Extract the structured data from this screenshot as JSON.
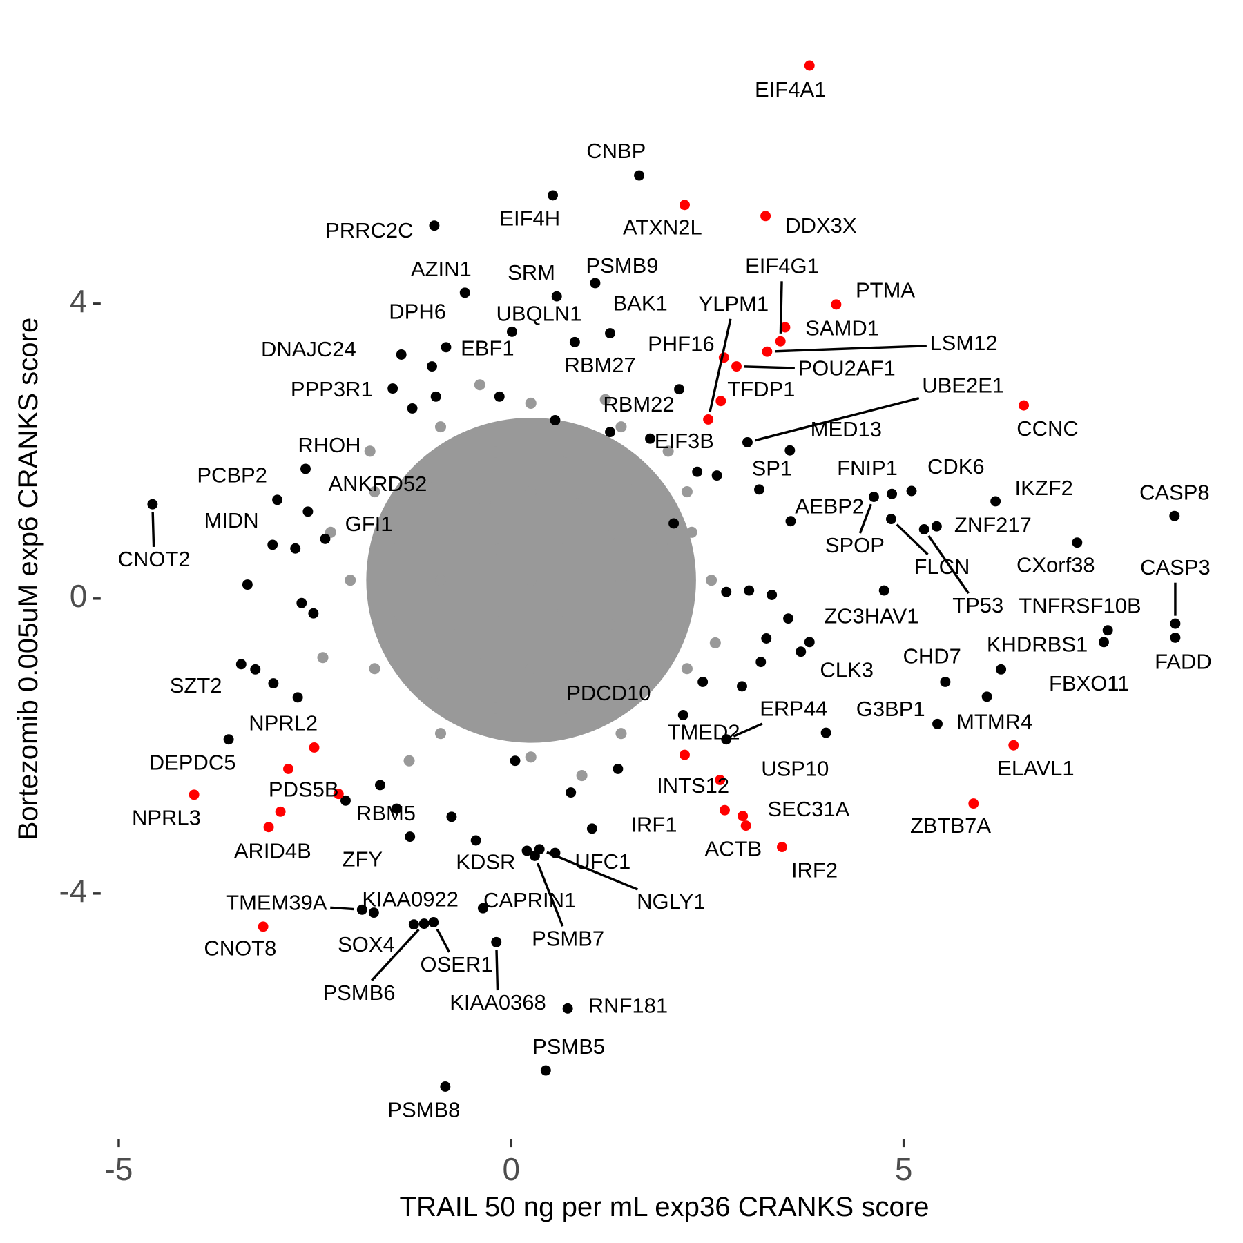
{
  "chart_data": {
    "type": "scatter",
    "xlabel": "TRAIL 50 ng per mL exp36 CRANKS score",
    "ylabel": "Bortezomib 0.005uM exp6 CRANKS score",
    "xlim": [
      -5.2,
      9.04
    ],
    "ylim": [
      -7.15,
      7.69
    ],
    "xticks": [
      -5,
      0,
      5
    ],
    "yticks": [
      -4,
      0,
      4
    ],
    "grid": false,
    "series": [
      {
        "color": "#999999",
        "x": [
          2.55,
          2.24,
          1.4,
          0.25,
          -0.9,
          -1.74,
          -2.05,
          -1.74,
          -0.9,
          0.25,
          1.4,
          2.24,
          1.92,
          1.47,
          0.7,
          -0.2,
          -0.97,
          -1.42,
          -1.42,
          -0.97,
          -0.2,
          0.7,
          1.47,
          1.92,
          1.4,
          1.25,
          0.83,
          0.25,
          -0.33,
          -0.75,
          -0.9,
          -0.75,
          -0.33,
          0.25,
          0.83,
          1.25,
          0.66,
          -0.16,
          -0.16,
          0.66,
          0.25,
          -2.3,
          -2.4,
          2.6,
          2.3,
          -0.4,
          0.9,
          1.2,
          -1.3,
          2.0,
          -1.8
        ],
        "values": [
          0.25,
          1.45,
          2.33,
          2.65,
          2.33,
          1.45,
          0.25,
          -0.95,
          -1.83,
          -2.15,
          -1.83,
          -0.95,
          0.72,
          1.52,
          1.99,
          1.99,
          1.52,
          0.72,
          -0.22,
          -1.02,
          -1.49,
          -1.49,
          -1.02,
          -0.22,
          0.25,
          0.85,
          1.29,
          1.45,
          1.29,
          0.85,
          0.25,
          -0.35,
          -0.79,
          -0.95,
          -0.79,
          -0.35,
          0.67,
          0.67,
          -0.17,
          -0.17,
          0.25,
          0.9,
          -0.8,
          -0.6,
          0.9,
          2.9,
          -2.4,
          2.7,
          -2.2,
          2.0,
          2.0
        ]
      },
      {
        "color": "#000000",
        "x": [
          1.63,
          0.53,
          -0.98,
          1.07,
          -0.59,
          0.58,
          0.01,
          1.26,
          -0.83,
          -1.4,
          -1.01,
          0.81,
          -1.51,
          2.14,
          3.01,
          1.77,
          3.55,
          3.16,
          -2.62,
          4.85,
          5.1,
          6.17,
          8.45,
          -2.98,
          -2.59,
          -4.57,
          3.56,
          4.62,
          4.84,
          5.42,
          5.26,
          -3.04,
          -2.37,
          7.21,
          4.75,
          8.46,
          7.6,
          8.46,
          7.55,
          3.8,
          6.24,
          -3.26,
          5.53,
          6.06,
          5.43,
          2.19,
          2.74,
          4.01,
          -2.11,
          1.03,
          -1.29,
          0.2,
          0.56,
          0.3,
          0.36,
          -1.75,
          -1.9,
          -1.24,
          -1.11,
          -0.36,
          -0.99,
          -0.19,
          0.72,
          0.44,
          -0.84,
          -3.6,
          -3.36,
          -2.75,
          -2.67,
          -2.52,
          -2.72,
          -3.44,
          -3.03,
          2.74,
          3.03,
          3.32,
          3.25,
          3.53,
          3.69,
          3.18,
          2.94,
          2.44,
          2.62,
          2.37,
          2.07,
          -1.26,
          -0.96,
          -0.45,
          -0.76,
          -1.46,
          0.76,
          1.36,
          0.05,
          -1.67,
          -0.15,
          0.56,
          1.26
        ],
        "values": [
          5.74,
          5.47,
          5.06,
          4.28,
          4.15,
          4.1,
          3.62,
          3.6,
          3.41,
          3.31,
          3.15,
          3.48,
          2.85,
          2.84,
          2.12,
          2.17,
          2.01,
          1.48,
          1.76,
          1.42,
          1.46,
          1.32,
          1.12,
          1.34,
          1.18,
          1.28,
          1.05,
          1.38,
          1.08,
          0.98,
          0.94,
          0.73,
          0.81,
          0.76,
          0.11,
          -0.34,
          -0.43,
          -0.53,
          -0.59,
          -0.59,
          -0.96,
          -0.96,
          -1.13,
          -1.33,
          -1.7,
          -1.58,
          -1.91,
          -1.82,
          -2.74,
          -3.12,
          -3.23,
          -3.42,
          -3.45,
          -3.49,
          -3.4,
          -4.26,
          -4.22,
          -4.42,
          -4.41,
          -4.2,
          -4.39,
          -4.66,
          -5.56,
          -6.4,
          -6.62,
          -1.91,
          0.19,
          0.68,
          -0.06,
          -0.2,
          -1.34,
          -0.89,
          -1.15,
          0.09,
          0.11,
          0.05,
          -0.54,
          -0.27,
          -0.72,
          -0.86,
          -1.19,
          -1.13,
          1.67,
          1.72,
          1.02,
          2.58,
          2.74,
          -3.28,
          -2.96,
          -2.85,
          -2.63,
          -2.31,
          -2.2,
          -2.53,
          2.74,
          2.42,
          2.26
        ],
        "labels": [
          "CNBP",
          "EIF4H",
          "PRRC2C",
          "PSMB9",
          "AZIN1",
          "SRM",
          "UBQLN1",
          "BAK1",
          "DPH6",
          "DNAJC24",
          "EBF1",
          "RBM27",
          "PPP3R1",
          "RBM22",
          "UBE2E1",
          "EIF3B",
          "MED13",
          "SP1",
          "RHOH",
          "FNIP1",
          "CDK6",
          "IKZF2",
          "CASP8",
          "PCBP2",
          "ANKRD52",
          "CNOT2",
          "AEBP2",
          "SPOP",
          "FLCN",
          "ZNF217",
          "TP53",
          "MIDN",
          "GFI1",
          "CXorf38",
          "ZC3HAV1",
          "CASP3",
          "TNFRSF10B",
          "FADD",
          "KHDRBS1",
          "CLK3",
          "CHD7",
          "SZT2",
          "G3BP1",
          "FBXO11",
          "MTMR4",
          "PDCD10",
          "ERP44",
          "USP10",
          "RBM5",
          "IRF1",
          "ZFY",
          "KDSR",
          "UFC1",
          "PSMB7",
          "NGLY1",
          "KIAA0922",
          "TMEM39A",
          "SOX4",
          "PSMB6",
          "CAPRIN1",
          "OSER1",
          "KIAA0368",
          "RNF181",
          "PSMB5",
          "PSMB8",
          null,
          null,
          null,
          null,
          null,
          null,
          null,
          null,
          null,
          null,
          null,
          null,
          null,
          null,
          null,
          null,
          null,
          null,
          null,
          null,
          null,
          null,
          null,
          null,
          null,
          null,
          null,
          null,
          null,
          null,
          null,
          null
        ]
      },
      {
        "color": "#ff0000",
        "x": [
          3.8,
          2.21,
          3.24,
          4.14,
          3.49,
          3.43,
          3.26,
          2.71,
          2.87,
          2.67,
          2.51,
          6.53,
          6.4,
          2.21,
          -2.51,
          -2.84,
          2.66,
          -4.04,
          -2.2,
          5.89,
          2.95,
          2.99,
          -3.09,
          3.45,
          -3.16,
          -2.94,
          2.72
        ],
        "values": [
          7.23,
          5.34,
          5.19,
          3.99,
          3.68,
          3.49,
          3.35,
          3.27,
          3.15,
          2.68,
          2.43,
          2.62,
          -1.99,
          -2.12,
          -2.02,
          -2.31,
          -2.46,
          -2.66,
          -2.65,
          -2.78,
          -2.95,
          -3.08,
          -3.1,
          -3.37,
          -4.45,
          -2.89,
          -2.87
        ],
        "labels": [
          "EIF4A1",
          "ATXN2L",
          "DDX3X",
          "PTMA",
          "SAMD1",
          "EIF4G1",
          "LSM12",
          "PHF16",
          "POU2AF1",
          "TFDP1",
          "YLPM1",
          "CCNC",
          "ELAVL1",
          "TMED2",
          "NPRL2",
          "DEPDC5",
          "INTS12",
          "NPRL3",
          "PDS5B",
          "ZBTB7A",
          "SEC31A",
          "ACTB",
          "ARID4B",
          "IRF2",
          "CNOT8",
          null,
          null
        ]
      }
    ]
  }
}
